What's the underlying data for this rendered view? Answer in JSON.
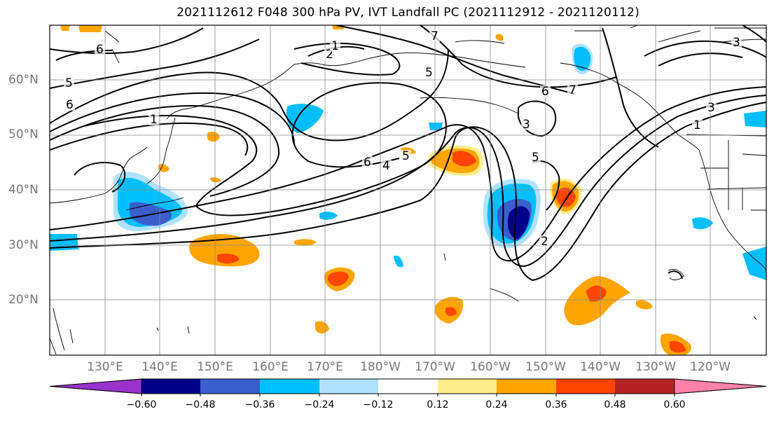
{
  "title": "2021112612 F048 300 hPa PV, IVT Landfall PC (2021112912 - 2021120112)",
  "lat_labels": [
    "60°N",
    "50°N",
    "40°N",
    "30°N",
    "20°N"
  ],
  "lon_labels": [
    "130°E",
    "140°E",
    "150°E",
    "160°E",
    "170°E",
    "180°W",
    "170°W",
    "160°W",
    "150°W",
    "140°W",
    "130°W",
    "120°W"
  ],
  "colorbar": {
    "ticks": [
      "−0.60",
      "−0.48",
      "−0.36",
      "−0.24",
      "−0.12",
      "0.12",
      "0.24",
      "0.36",
      "0.48",
      "0.60"
    ],
    "colors": [
      "#9932cc",
      "#00008b",
      "#3a5fcd",
      "#00bfff",
      "#b0e2ff",
      "#ffffff",
      "#ffec8b",
      "#ffa500",
      "#ff4500",
      "#b22222",
      "#ff82ab"
    ]
  },
  "contour_labels": [
    "6",
    "5",
    "6",
    "1",
    "2",
    "1",
    "7",
    "5",
    "6",
    "7",
    "3",
    "3",
    "1",
    "3",
    "6",
    "4",
    "5",
    "5",
    "2"
  ],
  "shading_colors": {
    "pos_light": "#ffec8b",
    "pos_mid": "#ffa500",
    "pos_strong": "#ff4500",
    "neg_light": "#b0e2ff",
    "neg_mid": "#00bfff",
    "neg_strong": "#3a5fcd",
    "neg_max": "#00008b"
  }
}
